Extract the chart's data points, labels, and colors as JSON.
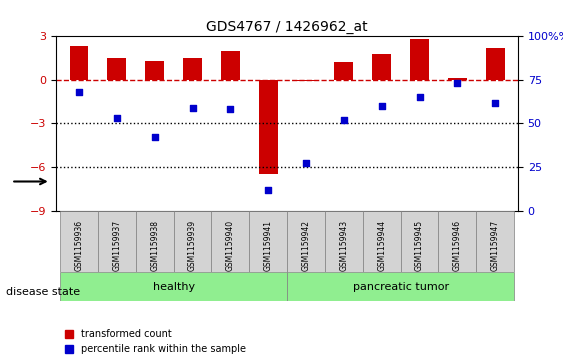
{
  "title": "GDS4767 / 1426962_at",
  "samples": [
    "GSM1159936",
    "GSM1159937",
    "GSM1159938",
    "GSM1159939",
    "GSM1159940",
    "GSM1159941",
    "GSM1159942",
    "GSM1159943",
    "GSM1159944",
    "GSM1159945",
    "GSM1159946",
    "GSM1159947"
  ],
  "transformed_count": [
    2.3,
    1.5,
    1.3,
    1.5,
    2.0,
    -6.5,
    -0.1,
    1.2,
    1.8,
    2.8,
    0.1,
    2.2
  ],
  "percentile_rank": [
    68,
    53,
    42,
    59,
    58,
    12,
    27,
    52,
    60,
    65,
    73,
    62
  ],
  "groups": [
    "healthy",
    "healthy",
    "healthy",
    "healthy",
    "healthy",
    "healthy",
    "pancreatic tumor",
    "pancreatic tumor",
    "pancreatic tumor",
    "pancreatic tumor",
    "pancreatic tumor",
    "pancreatic tumor"
  ],
  "bar_color": "#cc0000",
  "dot_color": "#0000cc",
  "healthy_color": "#90ee90",
  "tumor_color": "#90ee90",
  "dashed_line_color": "#cc0000",
  "dotted_line_color": "#000000",
  "ylim_left": [
    -9,
    3
  ],
  "ylim_right": [
    0,
    100
  ],
  "yticks_left": [
    -9,
    -6,
    -3,
    0,
    3
  ],
  "yticks_right": [
    0,
    25,
    50,
    75,
    100
  ],
  "legend_labels": [
    "transformed count",
    "percentile rank within the sample"
  ],
  "disease_state_label": "disease state",
  "background_color": "#ffffff"
}
